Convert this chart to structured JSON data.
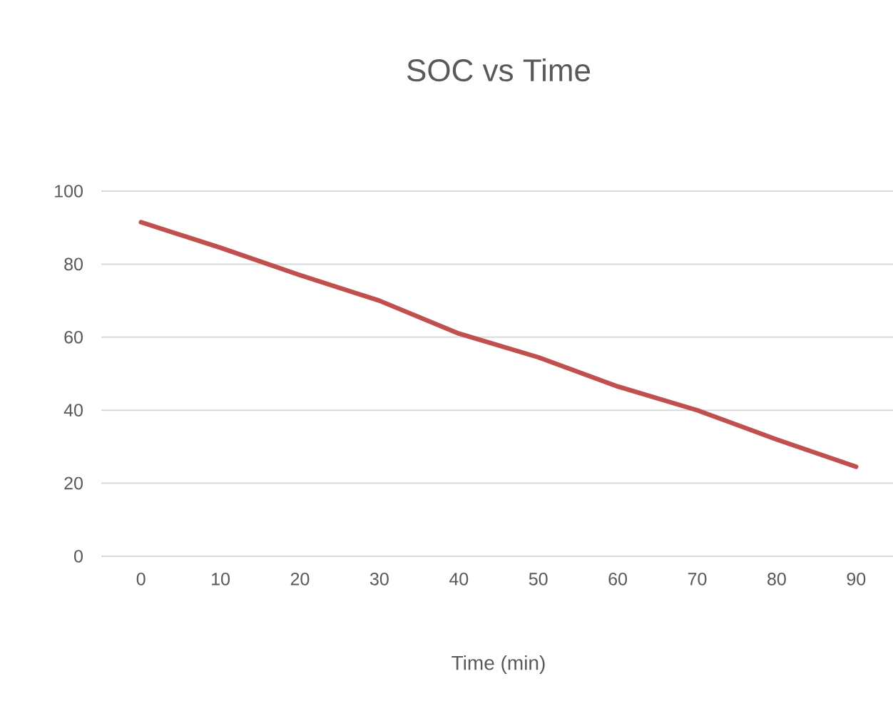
{
  "chart_data": {
    "type": "line",
    "title": "SOC vs Time",
    "xlabel": "Time (min)",
    "categories": [
      "0",
      "10",
      "20",
      "30",
      "40",
      "50",
      "60",
      "70",
      "80",
      "90"
    ],
    "series": [
      {
        "color": "#c0504d",
        "values": [
          91.5,
          84.5,
          77,
          70,
          61,
          54.5,
          46.5,
          40,
          32,
          24.5
        ]
      }
    ],
    "ylim": [
      0,
      100
    ],
    "yticks": [
      0,
      20,
      40,
      60,
      80,
      100
    ],
    "grid": "y"
  }
}
